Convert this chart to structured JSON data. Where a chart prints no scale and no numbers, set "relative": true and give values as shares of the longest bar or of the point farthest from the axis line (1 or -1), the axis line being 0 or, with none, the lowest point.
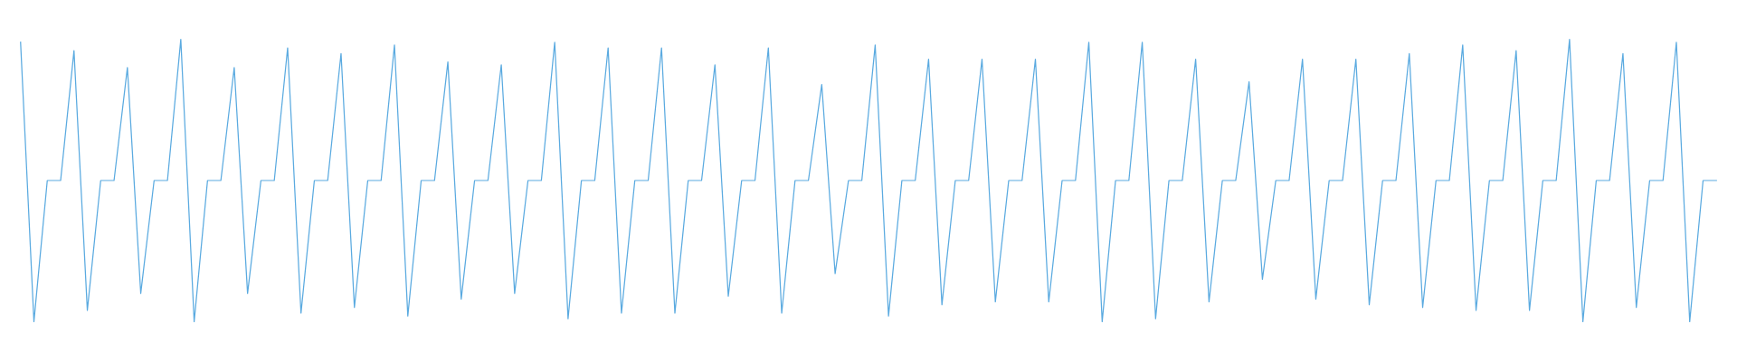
{
  "chart_data": {
    "type": "line",
    "relative": true,
    "marker": "none",
    "line_style": "solid",
    "categories": [
      null,
      null,
      null,
      null,
      null,
      null,
      null,
      null,
      null,
      null,
      null,
      null,
      null,
      null,
      null,
      null,
      null,
      null,
      null,
      null,
      null,
      null,
      null,
      null,
      null,
      null,
      null,
      null,
      null,
      null,
      null,
      null,
      null,
      null,
      null,
      null,
      null,
      null,
      null,
      null,
      null,
      null,
      null,
      null,
      null,
      null,
      null,
      null,
      null,
      null,
      null,
      null,
      null,
      null,
      null,
      null,
      null,
      null,
      null,
      null,
      null,
      null,
      null,
      null,
      null,
      null,
      null,
      null,
      null,
      null,
      null,
      null,
      null,
      null,
      null,
      null,
      null,
      null,
      null,
      null,
      null,
      null,
      null,
      null,
      null,
      null,
      null,
      null,
      null,
      null,
      null,
      null,
      null,
      null,
      null,
      null,
      null,
      null,
      null,
      null,
      null,
      null,
      null,
      null,
      null,
      null,
      null,
      null,
      null,
      null,
      null,
      null,
      null,
      null,
      null,
      null,
      null,
      null,
      null,
      null,
      null,
      null,
      null,
      null,
      null,
      null,
      null,
      null
    ],
    "series": [
      {
        "color": "#5aaae0",
        "values": [
          0.99,
          0.0,
          0.5,
          0.5,
          0.96,
          0.04,
          0.5,
          0.5,
          0.9,
          0.1,
          0.5,
          0.5,
          1.0,
          0.0,
          0.5,
          0.5,
          0.9,
          0.1,
          0.5,
          0.5,
          0.97,
          0.03,
          0.5,
          0.5,
          0.95,
          0.05,
          0.5,
          0.5,
          0.98,
          0.02,
          0.5,
          0.5,
          0.92,
          0.08,
          0.5,
          0.5,
          0.91,
          0.1,
          0.5,
          0.5,
          0.99,
          0.01,
          0.5,
          0.5,
          0.97,
          0.03,
          0.5,
          0.5,
          0.97,
          0.03,
          0.5,
          0.5,
          0.91,
          0.09,
          0.5,
          0.5,
          0.97,
          0.03,
          0.5,
          0.5,
          0.84,
          0.17,
          0.5,
          0.5,
          0.98,
          0.02,
          0.5,
          0.5,
          0.93,
          0.06,
          0.5,
          0.5,
          0.93,
          0.07,
          0.5,
          0.5,
          0.93,
          0.07,
          0.5,
          0.5,
          0.99,
          0.0,
          0.5,
          0.5,
          0.99,
          0.01,
          0.5,
          0.5,
          0.93,
          0.07,
          0.5,
          0.5,
          0.85,
          0.15,
          0.5,
          0.5,
          0.93,
          0.08,
          0.5,
          0.5,
          0.93,
          0.06,
          0.5,
          0.5,
          0.95,
          0.05,
          0.5,
          0.5,
          0.98,
          0.04,
          0.5,
          0.5,
          0.96,
          0.04,
          0.5,
          0.5,
          1.0,
          0.0,
          0.5,
          0.5,
          0.95,
          0.05,
          0.5,
          0.5,
          0.99,
          0.0,
          0.5,
          0.5
        ]
      }
    ]
  }
}
